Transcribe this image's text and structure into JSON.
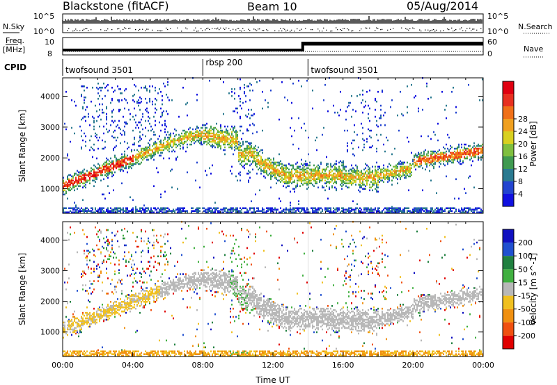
{
  "header": {
    "radar": "Blackstone (fitACF)",
    "beam": "Beam 10",
    "date": "05/Aug/2014"
  },
  "noise_panel": {
    "left_label": "N.Sky",
    "right_label": "N.Search",
    "y_ticks": [
      "10^5",
      "10^0"
    ]
  },
  "freq_panel": {
    "left_label_top": "Freq.",
    "left_label_bottom": "[MHz]",
    "right_label": "Nave",
    "left_ticks": [
      "10",
      "8"
    ],
    "right_ticks": [
      "60",
      "0"
    ]
  },
  "cpid": {
    "label": "CPID",
    "segments": [
      {
        "name": "twofsound 3501",
        "start": 0.0
      },
      {
        "name": "rbsp 200",
        "start": 8.0
      },
      {
        "name": "twofsound 3501",
        "start": 14.0
      }
    ]
  },
  "chart_data": [
    {
      "type": "heatmap",
      "quantity": "Power",
      "ylabel": "Slant Range [km]",
      "xlim": [
        0,
        24
      ],
      "ylim": [
        200,
        4600
      ],
      "y_ticks": [
        1000,
        2000,
        3000,
        4000
      ],
      "colorbar": {
        "label": "Power [dB]",
        "ticks": [
          "4",
          "8",
          "12",
          "16",
          "20",
          "24",
          "28"
        ],
        "colors": [
          "#1010e0",
          "#2244d0",
          "#2a7a90",
          "#3f9a50",
          "#7fbf3f",
          "#d8d020",
          "#f0a020",
          "#f07018",
          "#e83020",
          "#e00010"
        ]
      }
    },
    {
      "type": "heatmap",
      "quantity": "Velocity",
      "ylabel": "Slant Range [km]",
      "xlabel": "Time UT",
      "xlim": [
        0,
        24
      ],
      "ylim": [
        200,
        4600
      ],
      "y_ticks": [
        1000,
        2000,
        3000,
        4000
      ],
      "x_ticks": [
        "00:00",
        "04:00",
        "08:00",
        "12:00",
        "16:00",
        "20:00",
        "00:00"
      ],
      "colorbar": {
        "label": "Velocity [m s^-1]",
        "ticks": [
          "200",
          "100",
          "50",
          "15",
          "-15",
          "-50",
          "-100",
          "-200"
        ],
        "colors": [
          "#1010c0",
          "#2050d0",
          "#208040",
          "#40b040",
          "#b8b8b8",
          "#f0c020",
          "#f09010",
          "#f05010",
          "#e00000"
        ]
      }
    }
  ]
}
